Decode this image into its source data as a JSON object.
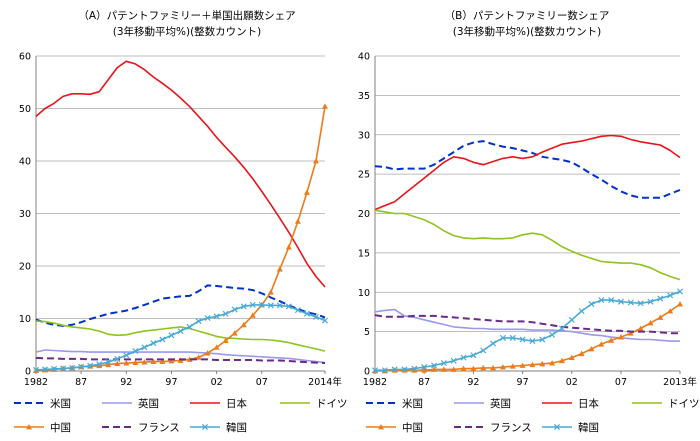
{
  "chart_data": [
    {
      "type": "line",
      "title": "（A）パテントファミリー＋単国出願数シェア",
      "subtitle": "(3年移動平均%)(整数カウント)",
      "x_ticks": [
        "1982",
        "87",
        "92",
        "97",
        "02",
        "07",
        "2014年"
      ],
      "x_range": [
        1982,
        2014
      ],
      "ylim": [
        0,
        60
      ],
      "y_ticks": [
        "0",
        "10",
        "20",
        "30",
        "40",
        "50",
        "60"
      ],
      "grid": true,
      "legend_position": "bottom",
      "series": [
        {
          "name": "米国",
          "color": "#0033cc",
          "style": "dashed",
          "marker": "none",
          "x": [
            1982,
            1983,
            1984,
            1985,
            1986,
            1987,
            1988,
            1989,
            1990,
            1991,
            1992,
            1993,
            1994,
            1995,
            1996,
            1997,
            1998,
            1999,
            2000,
            2001,
            2002,
            2003,
            2004,
            2005,
            2006,
            2007,
            2008,
            2009,
            2010,
            2011,
            2012,
            2013,
            2014
          ],
          "values": [
            9.8,
            9.2,
            8.8,
            8.6,
            8.8,
            9.3,
            9.9,
            10.4,
            10.9,
            11.2,
            11.5,
            12.0,
            12.6,
            13.2,
            13.8,
            14.0,
            14.2,
            14.3,
            15.2,
            16.3,
            16.2,
            16.0,
            15.8,
            15.7,
            15.4,
            14.8,
            14.0,
            13.3,
            12.5,
            11.8,
            11.2,
            10.8,
            10.2
          ]
        },
        {
          "name": "英国",
          "color": "#9999ee",
          "style": "solid",
          "marker": "none",
          "x": [
            1982,
            1983,
            1984,
            1985,
            1986,
            1987,
            1988,
            1989,
            1990,
            1991,
            1992,
            1993,
            1994,
            1995,
            1996,
            1997,
            1998,
            1999,
            2000,
            2001,
            2002,
            2003,
            2004,
            2005,
            2006,
            2007,
            2008,
            2009,
            2010,
            2011,
            2012,
            2013,
            2014
          ],
          "values": [
            3.6,
            4.0,
            3.9,
            3.8,
            3.7,
            3.7,
            3.6,
            3.6,
            3.6,
            3.6,
            3.6,
            3.6,
            3.6,
            3.6,
            3.6,
            3.6,
            3.6,
            3.6,
            3.5,
            3.4,
            3.3,
            3.1,
            3.0,
            2.9,
            2.8,
            2.7,
            2.6,
            2.5,
            2.4,
            2.2,
            2.0,
            1.8,
            1.6
          ]
        },
        {
          "name": "日本",
          "color": "#e8141c",
          "style": "solid",
          "marker": "none",
          "x": [
            1982,
            1983,
            1984,
            1985,
            1986,
            1987,
            1988,
            1989,
            1990,
            1991,
            1992,
            1993,
            1994,
            1995,
            1996,
            1997,
            1998,
            1999,
            2000,
            2001,
            2002,
            2003,
            2004,
            2005,
            2006,
            2007,
            2008,
            2009,
            2010,
            2011,
            2012,
            2013,
            2014
          ],
          "values": [
            48.5,
            50.0,
            51.0,
            52.3,
            52.8,
            52.8,
            52.7,
            53.2,
            55.5,
            57.8,
            59.0,
            58.5,
            57.4,
            56.0,
            54.8,
            53.5,
            52.0,
            50.4,
            48.5,
            46.6,
            44.5,
            42.6,
            40.8,
            38.8,
            36.6,
            34.2,
            31.7,
            29.1,
            26.4,
            23.5,
            20.5,
            18.0,
            16.0
          ]
        },
        {
          "name": "ドイツ",
          "color": "#8fc31f",
          "style": "solid",
          "marker": "none",
          "x": [
            1982,
            1983,
            1984,
            1985,
            1986,
            1987,
            1988,
            1989,
            1990,
            1991,
            1992,
            1993,
            1994,
            1995,
            1996,
            1997,
            1998,
            1999,
            2000,
            2001,
            2002,
            2003,
            2004,
            2005,
            2006,
            2007,
            2008,
            2009,
            2010,
            2011,
            2012,
            2013,
            2014
          ],
          "values": [
            9.5,
            9.4,
            9.1,
            8.7,
            8.4,
            8.2,
            8.0,
            7.6,
            7.0,
            6.8,
            6.9,
            7.3,
            7.6,
            7.8,
            8.0,
            8.2,
            8.4,
            8.1,
            7.6,
            7.1,
            6.6,
            6.3,
            6.2,
            6.1,
            6.0,
            6.0,
            5.9,
            5.7,
            5.4,
            5.0,
            4.6,
            4.2,
            3.8
          ]
        },
        {
          "name": "中国",
          "color": "#ee7b1a",
          "style": "solid",
          "marker": "triangle",
          "x": [
            1982,
            1983,
            1984,
            1985,
            1986,
            1987,
            1988,
            1989,
            1990,
            1991,
            1992,
            1993,
            1994,
            1995,
            1996,
            1997,
            1998,
            1999,
            2000,
            2001,
            2002,
            2003,
            2004,
            2005,
            2006,
            2007,
            2008,
            2009,
            2010,
            2011,
            2012,
            2013,
            2014
          ],
          "values": [
            0.1,
            0.2,
            0.3,
            0.5,
            0.6,
            0.8,
            0.9,
            1.0,
            1.2,
            1.4,
            1.5,
            1.6,
            1.7,
            1.8,
            1.8,
            1.9,
            2.0,
            2.2,
            2.6,
            3.4,
            4.5,
            5.8,
            7.2,
            8.8,
            10.6,
            12.6,
            15.0,
            19.4,
            23.6,
            28.5,
            34.0,
            40.0,
            50.4
          ]
        },
        {
          "name": "フランス",
          "color": "#6a2a8a",
          "style": "dashed",
          "marker": "none",
          "x": [
            1982,
            1983,
            1984,
            1985,
            1986,
            1987,
            1988,
            1989,
            1990,
            1991,
            1992,
            1993,
            1994,
            1995,
            1996,
            1997,
            1998,
            1999,
            2000,
            2001,
            2002,
            2003,
            2004,
            2005,
            2006,
            2007,
            2008,
            2009,
            2010,
            2011,
            2012,
            2013,
            2014
          ],
          "values": [
            2.5,
            2.4,
            2.4,
            2.3,
            2.3,
            2.3,
            2.2,
            2.2,
            2.2,
            2.2,
            2.2,
            2.2,
            2.2,
            2.2,
            2.2,
            2.2,
            2.2,
            2.2,
            2.2,
            2.2,
            2.1,
            2.1,
            2.1,
            2.1,
            2.1,
            2.0,
            2.0,
            2.0,
            1.9,
            1.8,
            1.7,
            1.6,
            1.5
          ]
        },
        {
          "name": "韓国",
          "color": "#49a9d6",
          "style": "solid",
          "marker": "x",
          "x": [
            1982,
            1983,
            1984,
            1985,
            1986,
            1987,
            1988,
            1989,
            1990,
            1991,
            1992,
            1993,
            1994,
            1995,
            1996,
            1997,
            1998,
            1999,
            2000,
            2001,
            2002,
            2003,
            2004,
            2005,
            2006,
            2007,
            2008,
            2009,
            2010,
            2011,
            2012,
            2013,
            2014
          ],
          "values": [
            0.2,
            0.3,
            0.4,
            0.5,
            0.6,
            0.8,
            1.0,
            1.3,
            1.7,
            2.3,
            3.0,
            3.8,
            4.5,
            5.3,
            6.0,
            6.8,
            7.6,
            8.4,
            9.5,
            10.1,
            10.4,
            10.9,
            11.7,
            12.3,
            12.6,
            12.6,
            12.5,
            12.5,
            12.3,
            11.6,
            10.9,
            10.3,
            9.6
          ]
        }
      ]
    },
    {
      "type": "line",
      "title": "（B）パテントファミリー数シェア",
      "subtitle": "(3年移動平均%)(整数カウント)",
      "x_ticks": [
        "1982",
        "87",
        "92",
        "97",
        "02",
        "07",
        "2013年"
      ],
      "x_range": [
        1982,
        2013
      ],
      "ylim": [
        0,
        40
      ],
      "y_ticks": [
        "0",
        "5",
        "10",
        "15",
        "20",
        "25",
        "30",
        "35",
        "40"
      ],
      "grid": true,
      "legend_position": "bottom",
      "series": [
        {
          "name": "米国",
          "color": "#0033cc",
          "style": "dashed",
          "marker": "none",
          "x": [
            1982,
            1983,
            1984,
            1985,
            1986,
            1987,
            1988,
            1989,
            1990,
            1991,
            1992,
            1993,
            1994,
            1995,
            1996,
            1997,
            1998,
            1999,
            2000,
            2001,
            2002,
            2003,
            2004,
            2005,
            2006,
            2007,
            2008,
            2009,
            2010,
            2011,
            2012,
            2013
          ],
          "values": [
            26.0,
            25.9,
            25.6,
            25.7,
            25.7,
            25.7,
            26.2,
            27.0,
            27.8,
            28.6,
            29.0,
            29.2,
            28.8,
            28.5,
            28.3,
            28.0,
            27.7,
            27.2,
            27.0,
            26.8,
            26.5,
            25.8,
            25.0,
            24.3,
            23.5,
            22.8,
            22.3,
            22.0,
            22.0,
            22.0,
            22.5,
            23.0
          ]
        },
        {
          "name": "英国",
          "color": "#9999ee",
          "style": "solid",
          "marker": "none",
          "x": [
            1982,
            1983,
            1984,
            1985,
            1986,
            1987,
            1988,
            1989,
            1990,
            1991,
            1992,
            1993,
            1994,
            1995,
            1996,
            1997,
            1998,
            1999,
            2000,
            2001,
            2002,
            2003,
            2004,
            2005,
            2006,
            2007,
            2008,
            2009,
            2010,
            2011,
            2012,
            2013
          ],
          "values": [
            7.5,
            7.7,
            7.8,
            7.0,
            6.8,
            6.5,
            6.2,
            5.9,
            5.6,
            5.5,
            5.4,
            5.4,
            5.3,
            5.3,
            5.3,
            5.3,
            5.2,
            5.2,
            5.2,
            5.1,
            5.0,
            4.8,
            4.6,
            4.5,
            4.3,
            4.2,
            4.1,
            4.0,
            4.0,
            3.9,
            3.8,
            3.8
          ]
        },
        {
          "name": "日本",
          "color": "#e8141c",
          "style": "solid",
          "marker": "none",
          "x": [
            1982,
            1983,
            1984,
            1985,
            1986,
            1987,
            1988,
            1989,
            1990,
            1991,
            1992,
            1993,
            1994,
            1995,
            1996,
            1997,
            1998,
            1999,
            2000,
            2001,
            2002,
            2003,
            2004,
            2005,
            2006,
            2007,
            2008,
            2009,
            2010,
            2011,
            2012,
            2013
          ],
          "values": [
            20.5,
            21.0,
            21.5,
            22.5,
            23.5,
            24.5,
            25.5,
            26.5,
            27.2,
            27.0,
            26.5,
            26.2,
            26.6,
            27.0,
            27.2,
            27.0,
            27.2,
            27.8,
            28.3,
            28.8,
            29.0,
            29.2,
            29.5,
            29.8,
            29.9,
            29.8,
            29.4,
            29.1,
            28.9,
            28.7,
            28.0,
            27.1
          ]
        },
        {
          "name": "ドイツ",
          "color": "#8fc31f",
          "style": "solid",
          "marker": "none",
          "x": [
            1982,
            1983,
            1984,
            1985,
            1986,
            1987,
            1988,
            1989,
            1990,
            1991,
            1992,
            1993,
            1994,
            1995,
            1996,
            1997,
            1998,
            1999,
            2000,
            2001,
            2002,
            2003,
            2004,
            2005,
            2006,
            2007,
            2008,
            2009,
            2010,
            2011,
            2012,
            2013
          ],
          "values": [
            20.4,
            20.2,
            20.0,
            20.0,
            19.6,
            19.2,
            18.6,
            17.8,
            17.2,
            16.9,
            16.8,
            16.9,
            16.8,
            16.8,
            16.9,
            17.3,
            17.5,
            17.3,
            16.6,
            15.8,
            15.2,
            14.7,
            14.3,
            13.9,
            13.8,
            13.7,
            13.7,
            13.5,
            13.1,
            12.5,
            12.0,
            11.6
          ]
        },
        {
          "name": "中国",
          "color": "#ee7b1a",
          "style": "solid",
          "marker": "triangle",
          "x": [
            1982,
            1983,
            1984,
            1985,
            1986,
            1987,
            1988,
            1989,
            1990,
            1991,
            1992,
            1993,
            1994,
            1995,
            1996,
            1997,
            1998,
            1999,
            2000,
            2001,
            2002,
            2003,
            2004,
            2005,
            2006,
            2007,
            2008,
            2009,
            2010,
            2011,
            2012,
            2013
          ],
          "values": [
            0.0,
            0.0,
            0.1,
            0.1,
            0.1,
            0.1,
            0.2,
            0.2,
            0.2,
            0.3,
            0.3,
            0.4,
            0.4,
            0.5,
            0.6,
            0.7,
            0.8,
            0.9,
            1.0,
            1.3,
            1.7,
            2.2,
            2.8,
            3.4,
            3.9,
            4.3,
            4.8,
            5.4,
            6.1,
            6.8,
            7.6,
            8.5
          ]
        },
        {
          "name": "フランス",
          "color": "#6a2a8a",
          "style": "dashed",
          "marker": "none",
          "x": [
            1982,
            1983,
            1984,
            1985,
            1986,
            1987,
            1988,
            1989,
            1990,
            1991,
            1992,
            1993,
            1994,
            1995,
            1996,
            1997,
            1998,
            1999,
            2000,
            2001,
            2002,
            2003,
            2004,
            2005,
            2006,
            2007,
            2008,
            2009,
            2010,
            2011,
            2012,
            2013
          ],
          "values": [
            7.1,
            6.9,
            6.9,
            6.9,
            7.0,
            7.0,
            7.0,
            6.9,
            6.8,
            6.7,
            6.6,
            6.5,
            6.4,
            6.3,
            6.3,
            6.3,
            6.2,
            6.0,
            5.8,
            5.6,
            5.5,
            5.4,
            5.3,
            5.2,
            5.1,
            5.1,
            5.0,
            5.0,
            5.0,
            4.9,
            4.8,
            4.8
          ]
        },
        {
          "name": "韓国",
          "color": "#49a9d6",
          "style": "solid",
          "marker": "x",
          "x": [
            1982,
            1983,
            1984,
            1985,
            1986,
            1987,
            1988,
            1989,
            1990,
            1991,
            1992,
            1993,
            1994,
            1995,
            1996,
            1997,
            1998,
            1999,
            2000,
            2001,
            2002,
            2003,
            2004,
            2005,
            2006,
            2007,
            2008,
            2009,
            2010,
            2011,
            2012,
            2013
          ],
          "values": [
            0.1,
            0.1,
            0.2,
            0.2,
            0.3,
            0.5,
            0.7,
            1.0,
            1.3,
            1.7,
            2.0,
            2.6,
            3.5,
            4.2,
            4.2,
            4.0,
            3.8,
            4.0,
            4.6,
            5.4,
            6.5,
            7.6,
            8.5,
            9.0,
            9.0,
            8.8,
            8.7,
            8.6,
            8.8,
            9.2,
            9.6,
            10.1
          ]
        }
      ]
    }
  ]
}
